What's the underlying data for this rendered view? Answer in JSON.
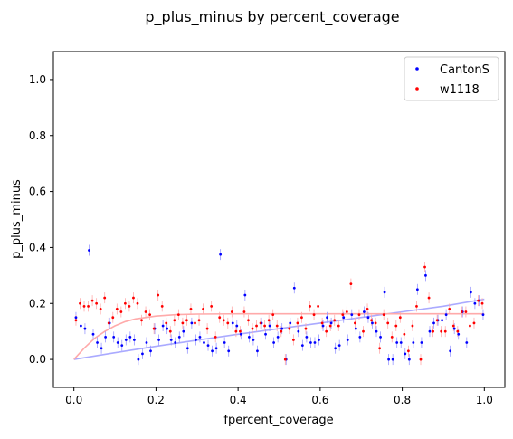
{
  "chart_data": {
    "type": "scatter",
    "title": "p_plus_minus by percent_coverage",
    "xlabel": "fpercent_coverage",
    "ylabel": "p_plus_minus",
    "xlim": [
      -0.05,
      1.05
    ],
    "ylim": [
      -0.1,
      1.1
    ],
    "xticks": [
      0.0,
      0.2,
      0.4,
      0.6,
      0.8,
      1.0
    ],
    "yticks": [
      0.0,
      0.2,
      0.4,
      0.6,
      0.8,
      1.0
    ],
    "xtick_labels": [
      "0.0",
      "0.2",
      "0.4",
      "0.6",
      "0.8",
      "1.0"
    ],
    "ytick_labels": [
      "0.0",
      "0.2",
      "0.4",
      "0.6",
      "0.8",
      "1.0"
    ],
    "grid": false,
    "legend_position": "top-right",
    "series": [
      {
        "name": "CantonS",
        "color": "#0000ff",
        "errorbar_color": "#9999ff",
        "fit": {
          "color": "#aaaaff",
          "x": [
            0,
            0.1,
            0.2,
            0.3,
            0.4,
            0.5,
            0.6,
            0.7,
            0.8,
            0.9,
            1.0
          ],
          "y": [
            0.0,
            0.024,
            0.047,
            0.069,
            0.09,
            0.11,
            0.13,
            0.15,
            0.17,
            0.19,
            0.215
          ]
        },
        "points": [
          [
            0.005,
            0.15
          ],
          [
            0.017,
            0.12
          ],
          [
            0.027,
            0.11
          ],
          [
            0.037,
            0.39
          ],
          [
            0.047,
            0.09
          ],
          [
            0.057,
            0.06
          ],
          [
            0.067,
            0.04
          ],
          [
            0.077,
            0.08
          ],
          [
            0.087,
            0.13
          ],
          [
            0.097,
            0.08
          ],
          [
            0.107,
            0.06
          ],
          [
            0.117,
            0.05
          ],
          [
            0.127,
            0.07
          ],
          [
            0.137,
            0.08
          ],
          [
            0.147,
            0.07
          ],
          [
            0.157,
            0.0
          ],
          [
            0.167,
            0.02
          ],
          [
            0.177,
            0.06
          ],
          [
            0.187,
            0.03
          ],
          [
            0.197,
            0.11
          ],
          [
            0.207,
            0.07
          ],
          [
            0.217,
            0.12
          ],
          [
            0.227,
            0.11
          ],
          [
            0.237,
            0.07
          ],
          [
            0.247,
            0.06
          ],
          [
            0.257,
            0.08
          ],
          [
            0.267,
            0.1
          ],
          [
            0.277,
            0.04
          ],
          [
            0.287,
            0.13
          ],
          [
            0.297,
            0.07
          ],
          [
            0.307,
            0.08
          ],
          [
            0.317,
            0.06
          ],
          [
            0.327,
            0.05
          ],
          [
            0.337,
            0.03
          ],
          [
            0.347,
            0.04
          ],
          [
            0.357,
            0.375
          ],
          [
            0.367,
            0.06
          ],
          [
            0.377,
            0.03
          ],
          [
            0.387,
            0.13
          ],
          [
            0.397,
            0.12
          ],
          [
            0.407,
            0.09
          ],
          [
            0.417,
            0.23
          ],
          [
            0.427,
            0.08
          ],
          [
            0.437,
            0.07
          ],
          [
            0.447,
            0.03
          ],
          [
            0.457,
            0.13
          ],
          [
            0.467,
            0.09
          ],
          [
            0.477,
            0.12
          ],
          [
            0.487,
            0.06
          ],
          [
            0.497,
            0.08
          ],
          [
            0.507,
            0.11
          ],
          [
            0.517,
            0.0
          ],
          [
            0.527,
            0.13
          ],
          [
            0.537,
            0.255
          ],
          [
            0.547,
            0.1
          ],
          [
            0.557,
            0.05
          ],
          [
            0.567,
            0.08
          ],
          [
            0.577,
            0.06
          ],
          [
            0.587,
            0.06
          ],
          [
            0.597,
            0.07
          ],
          [
            0.607,
            0.12
          ],
          [
            0.617,
            0.15
          ],
          [
            0.627,
            0.13
          ],
          [
            0.637,
            0.04
          ],
          [
            0.647,
            0.05
          ],
          [
            0.657,
            0.15
          ],
          [
            0.667,
            0.07
          ],
          [
            0.677,
            0.16
          ],
          [
            0.687,
            0.11
          ],
          [
            0.697,
            0.08
          ],
          [
            0.707,
            0.17
          ],
          [
            0.717,
            0.15
          ],
          [
            0.727,
            0.13
          ],
          [
            0.737,
            0.1
          ],
          [
            0.747,
            0.08
          ],
          [
            0.757,
            0.24
          ],
          [
            0.767,
            0.0
          ],
          [
            0.777,
            0.0
          ],
          [
            0.787,
            0.06
          ],
          [
            0.797,
            0.06
          ],
          [
            0.807,
            0.02
          ],
          [
            0.817,
            0.0
          ],
          [
            0.827,
            0.06
          ],
          [
            0.837,
            0.25
          ],
          [
            0.847,
            0.06
          ],
          [
            0.857,
            0.3
          ],
          [
            0.867,
            0.1
          ],
          [
            0.877,
            0.13
          ],
          [
            0.887,
            0.14
          ],
          [
            0.897,
            0.14
          ],
          [
            0.907,
            0.16
          ],
          [
            0.917,
            0.03
          ],
          [
            0.927,
            0.11
          ],
          [
            0.937,
            0.09
          ],
          [
            0.947,
            0.17
          ],
          [
            0.957,
            0.06
          ],
          [
            0.967,
            0.24
          ],
          [
            0.977,
            0.2
          ],
          [
            0.987,
            0.21
          ],
          [
            0.997,
            0.16
          ]
        ]
      },
      {
        "name": "w1118",
        "color": "#ff0000",
        "errorbar_color": "#ffaaaa",
        "fit": {
          "color": "#ffaaaa",
          "x": [
            0,
            0.025,
            0.05,
            0.075,
            0.1,
            0.125,
            0.15,
            0.2,
            0.25,
            0.3,
            0.4,
            0.5,
            0.6,
            0.7,
            0.8,
            0.9,
            1.0
          ],
          "y": [
            0.0,
            0.04,
            0.075,
            0.1,
            0.12,
            0.135,
            0.145,
            0.155,
            0.16,
            0.162,
            0.163,
            0.163,
            0.163,
            0.163,
            0.163,
            0.163,
            0.163
          ]
        },
        "points": [
          [
            0.005,
            0.14
          ],
          [
            0.015,
            0.2
          ],
          [
            0.025,
            0.19
          ],
          [
            0.035,
            0.19
          ],
          [
            0.045,
            0.21
          ],
          [
            0.055,
            0.2
          ],
          [
            0.065,
            0.18
          ],
          [
            0.075,
            0.22
          ],
          [
            0.085,
            0.13
          ],
          [
            0.095,
            0.15
          ],
          [
            0.105,
            0.18
          ],
          [
            0.115,
            0.17
          ],
          [
            0.125,
            0.2
          ],
          [
            0.135,
            0.19
          ],
          [
            0.145,
            0.22
          ],
          [
            0.155,
            0.2
          ],
          [
            0.165,
            0.14
          ],
          [
            0.175,
            0.17
          ],
          [
            0.185,
            0.16
          ],
          [
            0.195,
            0.11
          ],
          [
            0.205,
            0.23
          ],
          [
            0.215,
            0.19
          ],
          [
            0.225,
            0.13
          ],
          [
            0.235,
            0.1
          ],
          [
            0.245,
            0.14
          ],
          [
            0.255,
            0.16
          ],
          [
            0.265,
            0.13
          ],
          [
            0.275,
            0.14
          ],
          [
            0.285,
            0.18
          ],
          [
            0.295,
            0.13
          ],
          [
            0.305,
            0.14
          ],
          [
            0.315,
            0.18
          ],
          [
            0.325,
            0.11
          ],
          [
            0.335,
            0.19
          ],
          [
            0.345,
            0.08
          ],
          [
            0.355,
            0.15
          ],
          [
            0.365,
            0.14
          ],
          [
            0.375,
            0.13
          ],
          [
            0.385,
            0.17
          ],
          [
            0.395,
            0.1
          ],
          [
            0.405,
            0.1
          ],
          [
            0.415,
            0.17
          ],
          [
            0.425,
            0.14
          ],
          [
            0.435,
            0.11
          ],
          [
            0.445,
            0.12
          ],
          [
            0.455,
            0.13
          ],
          [
            0.465,
            0.12
          ],
          [
            0.475,
            0.14
          ],
          [
            0.485,
            0.16
          ],
          [
            0.495,
            0.12
          ],
          [
            0.505,
            0.1
          ],
          [
            0.515,
            0.0
          ],
          [
            0.525,
            0.11
          ],
          [
            0.535,
            0.07
          ],
          [
            0.545,
            0.13
          ],
          [
            0.555,
            0.15
          ],
          [
            0.565,
            0.11
          ],
          [
            0.575,
            0.19
          ],
          [
            0.585,
            0.16
          ],
          [
            0.595,
            0.19
          ],
          [
            0.605,
            0.13
          ],
          [
            0.615,
            0.1
          ],
          [
            0.625,
            0.12
          ],
          [
            0.635,
            0.14
          ],
          [
            0.645,
            0.12
          ],
          [
            0.655,
            0.16
          ],
          [
            0.665,
            0.17
          ],
          [
            0.675,
            0.27
          ],
          [
            0.685,
            0.13
          ],
          [
            0.695,
            0.16
          ],
          [
            0.705,
            0.1
          ],
          [
            0.715,
            0.18
          ],
          [
            0.725,
            0.14
          ],
          [
            0.735,
            0.13
          ],
          [
            0.745,
            0.04
          ],
          [
            0.755,
            0.16
          ],
          [
            0.765,
            0.13
          ],
          [
            0.775,
            0.08
          ],
          [
            0.785,
            0.12
          ],
          [
            0.795,
            0.15
          ],
          [
            0.805,
            0.09
          ],
          [
            0.815,
            0.03
          ],
          [
            0.825,
            0.12
          ],
          [
            0.835,
            0.19
          ],
          [
            0.845,
            0.0
          ],
          [
            0.855,
            0.33
          ],
          [
            0.865,
            0.22
          ],
          [
            0.875,
            0.1
          ],
          [
            0.885,
            0.14
          ],
          [
            0.895,
            0.1
          ],
          [
            0.905,
            0.1
          ],
          [
            0.915,
            0.18
          ],
          [
            0.925,
            0.12
          ],
          [
            0.935,
            0.1
          ],
          [
            0.945,
            0.17
          ],
          [
            0.955,
            0.17
          ],
          [
            0.965,
            0.12
          ],
          [
            0.975,
            0.13
          ],
          [
            0.985,
            0.21
          ],
          [
            0.995,
            0.2
          ]
        ]
      }
    ]
  }
}
